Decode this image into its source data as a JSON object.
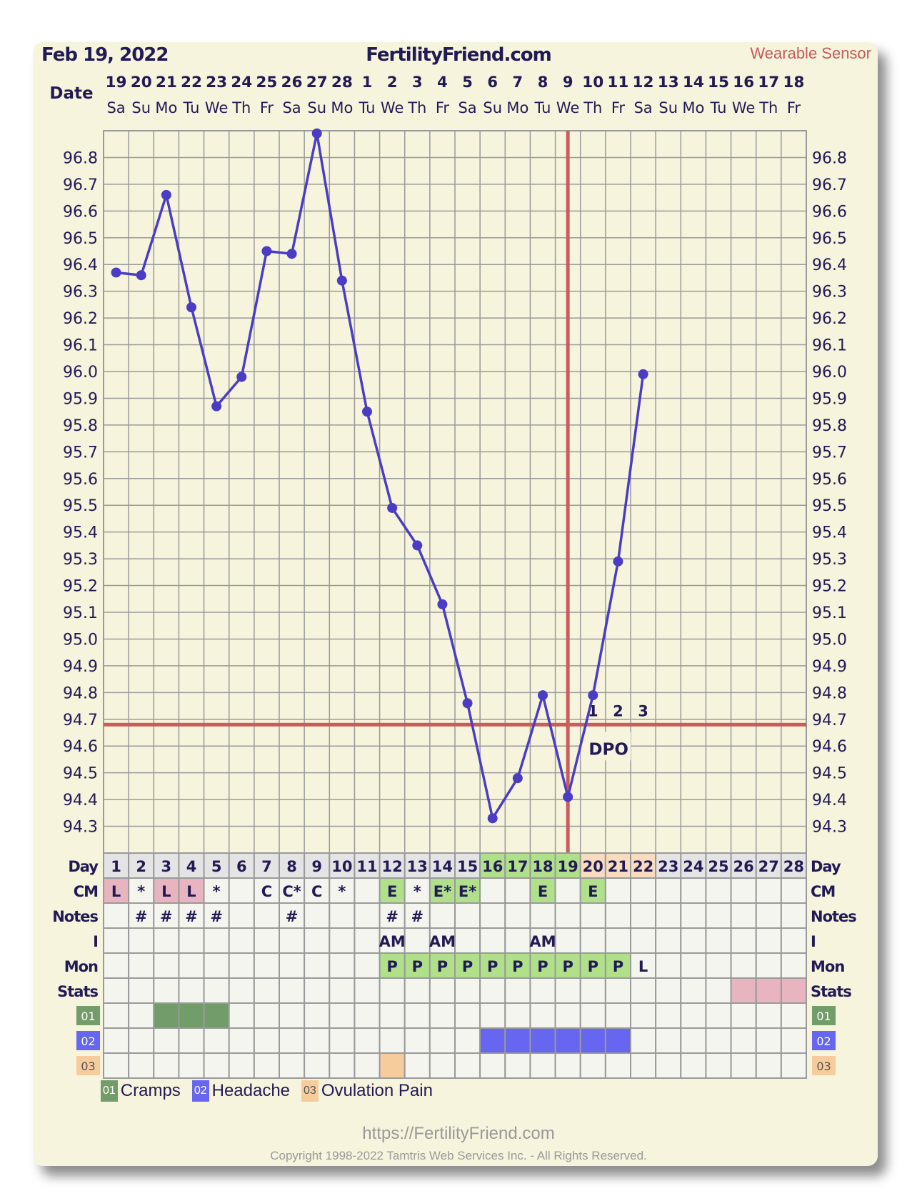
{
  "header": {
    "date": "Feb 19, 2022",
    "site": "FertilityFriend.com",
    "source": "Wearable Sensor"
  },
  "footer": {
    "url": "https://FertilityFriend.com",
    "copyright": "Copyright 1998-2022 Tamtris Web Services Inc. - All Rights Reserved."
  },
  "colors": {
    "line": "#4a3cc4",
    "coverline": "#cc5c5c",
    "grid": "#9a9a9a",
    "plot_bg": "#f6f4dc",
    "text": "#221a55",
    "cm_L": "#e8b4c0",
    "green": "#b0e08a",
    "peach": "#f8dcc0",
    "stats": "#e8b4c0",
    "s01": "#729c6a",
    "s02": "#6666f0",
    "s03": "#f7cc9c"
  },
  "chart_data": {
    "type": "line",
    "xlabel": "Date",
    "dates": [
      "19",
      "20",
      "21",
      "22",
      "23",
      "24",
      "25",
      "26",
      "27",
      "28",
      "1",
      "2",
      "3",
      "4",
      "5",
      "6",
      "7",
      "8",
      "9",
      "10",
      "11",
      "12",
      "13",
      "14",
      "15",
      "16",
      "17",
      "18"
    ],
    "weekdays": [
      "Sa",
      "Su",
      "Mo",
      "Tu",
      "We",
      "Th",
      "Fr",
      "Sa",
      "Su",
      "Mo",
      "Tu",
      "We",
      "Th",
      "Fr",
      "Sa",
      "Su",
      "Mo",
      "Tu",
      "We",
      "Th",
      "Fr",
      "Sa",
      "Su",
      "Mo",
      "Tu",
      "We",
      "Th",
      "Fr"
    ],
    "temps": [
      96.37,
      96.36,
      96.66,
      96.24,
      95.87,
      95.98,
      96.45,
      96.44,
      96.89,
      96.34,
      95.85,
      95.49,
      95.35,
      95.13,
      94.76,
      94.33,
      94.48,
      94.79,
      94.41,
      94.79,
      95.29,
      95.99
    ],
    "ylim": [
      94.2,
      96.9
    ],
    "yticks": [
      "96.8",
      "96.7",
      "96.6",
      "96.5",
      "96.4",
      "96.3",
      "96.2",
      "96.1",
      "96.0",
      "95.9",
      "95.8",
      "95.7",
      "95.6",
      "95.5",
      "95.4",
      "95.3",
      "95.2",
      "95.1",
      "95.0",
      "94.9",
      "94.8",
      "94.7",
      "94.6",
      "94.5",
      "94.4",
      "94.3"
    ],
    "coverline": 94.68,
    "ovulation_day": 19,
    "dpo_label": "DPO",
    "dpo_numbers": [
      "1",
      "2",
      "3"
    ],
    "grid": true
  },
  "table": {
    "rows": [
      {
        "label": "Day",
        "cells": [
          "1",
          "2",
          "3",
          "4",
          "5",
          "6",
          "7",
          "8",
          "9",
          "10",
          "11",
          "12",
          "13",
          "14",
          "15",
          "16",
          "17",
          "18",
          "19",
          "20",
          "21",
          "22",
          "23",
          "24",
          "25",
          "26",
          "27",
          "28"
        ],
        "fills": [
          "",
          "",
          "",
          "",
          "",
          "",
          "",
          "",
          "",
          "",
          "",
          "",
          "",
          "",
          "",
          "green",
          "green",
          "green",
          "green",
          "peach",
          "peach",
          "peach",
          "",
          "",
          "",
          "",
          "",
          ""
        ]
      },
      {
        "label": "CM",
        "cells": [
          "L",
          "*",
          "L",
          "L",
          "*",
          "",
          "C",
          "C*",
          "C",
          "*",
          "",
          "E",
          "*",
          "E*",
          "E*",
          "",
          "",
          "E",
          "",
          "E",
          "",
          "",
          "",
          "",
          "",
          "",
          "",
          ""
        ],
        "fills": [
          "cm_L",
          "",
          "cm_L",
          "cm_L",
          "",
          "",
          "",
          "",
          "",
          "",
          "",
          "green",
          "",
          "green",
          "green",
          "",
          "",
          "green",
          "",
          "green",
          "",
          "",
          "",
          "",
          "",
          "",
          "",
          ""
        ]
      },
      {
        "label": "Notes",
        "cells": [
          "",
          "#",
          "#",
          "#",
          "#",
          "",
          "",
          "#",
          "",
          "",
          "",
          "#",
          "#",
          "",
          "",
          "",
          "",
          "",
          "",
          "",
          "",
          "",
          "",
          "",
          "",
          "",
          "",
          ""
        ],
        "fills": []
      },
      {
        "label": "I",
        "cells": [
          "",
          "",
          "",
          "",
          "",
          "",
          "",
          "",
          "",
          "",
          "",
          "AM",
          "",
          "AM",
          "",
          "",
          "",
          "AM",
          "",
          "",
          "",
          "",
          "",
          "",
          "",
          "",
          "",
          ""
        ],
        "fills": []
      },
      {
        "label": "Mon",
        "cells": [
          "",
          "",
          "",
          "",
          "",
          "",
          "",
          "",
          "",
          "",
          "",
          "P",
          "P",
          "P",
          "P",
          "P",
          "P",
          "P",
          "P",
          "P",
          "P",
          "L",
          "",
          "",
          "",
          "",
          "",
          ""
        ],
        "fills": [
          "",
          "",
          "",
          "",
          "",
          "",
          "",
          "",
          "",
          "",
          "",
          "green",
          "green",
          "green",
          "green",
          "green",
          "green",
          "green",
          "green",
          "green",
          "green",
          "",
          "",
          "",
          "",
          "",
          "",
          ""
        ]
      },
      {
        "label": "Stats",
        "cells": [],
        "fills": [
          "",
          "",
          "",
          "",
          "",
          "",
          "",
          "",
          "",
          "",
          "",
          "",
          "",
          "",
          "",
          "",
          "",
          "",
          "",
          "",
          "",
          "",
          "",
          "",
          "",
          "stats",
          "stats",
          "stats"
        ]
      },
      {
        "label": "01",
        "cells": [],
        "fills": [
          "",
          "",
          "s01",
          "s01",
          "s01"
        ]
      },
      {
        "label": "02",
        "cells": [],
        "fills": [
          "",
          "",
          "",
          "",
          "",
          "",
          "",
          "",
          "",
          "",
          "",
          "",
          "",
          "",
          "",
          "s02",
          "s02",
          "s02",
          "s02",
          "s02",
          "s02"
        ]
      },
      {
        "label": "03",
        "cells": [],
        "fills": [
          "",
          "",
          "",
          "",
          "",
          "",
          "",
          "",
          "",
          "",
          "",
          "s03"
        ]
      }
    ]
  },
  "legend": [
    {
      "code": "01",
      "label": "Cramps",
      "color": "#729c6a"
    },
    {
      "code": "02",
      "label": "Headache",
      "color": "#6666f0"
    },
    {
      "code": "03",
      "label": "Ovulation Pain",
      "color": "#f7cc9c"
    }
  ]
}
